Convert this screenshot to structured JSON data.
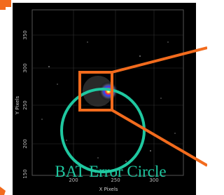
{
  "image": {
    "label": "BAT Error Circle",
    "x_axis_label": "X Pixels",
    "y_axis_label": "Y Pixels",
    "y_ticks": [
      "350",
      "300",
      "250",
      "200",
      "150"
    ],
    "x_ticks": [
      "200",
      "250",
      "300"
    ]
  }
}
